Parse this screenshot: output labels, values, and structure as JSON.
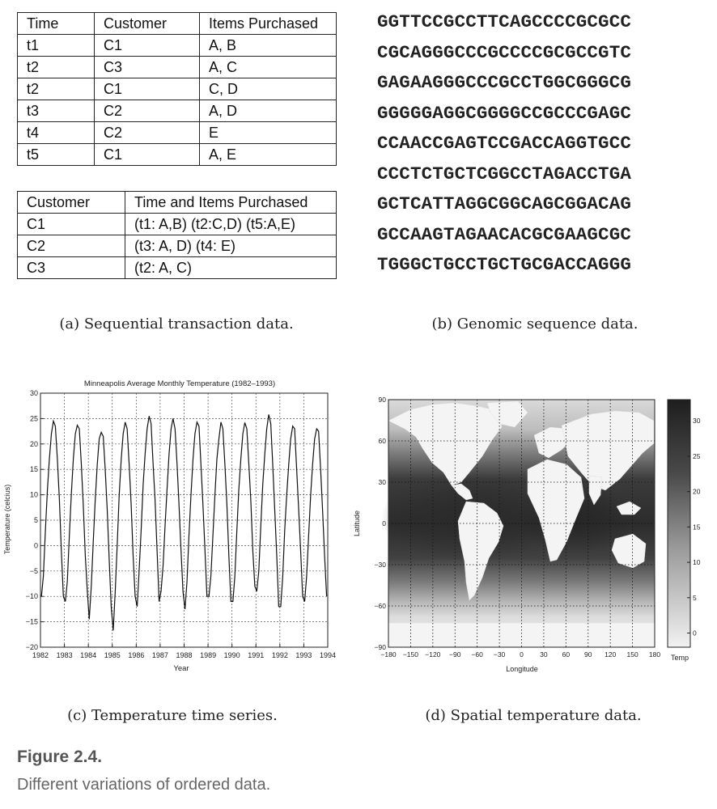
{
  "transactions": {
    "headers": [
      "Time",
      "Customer",
      "Items Purchased"
    ],
    "rows": [
      [
        "t1",
        "C1",
        "A, B"
      ],
      [
        "t2",
        "C3",
        "A, C"
      ],
      [
        "t2",
        "C1",
        "C, D"
      ],
      [
        "t3",
        "C2",
        "A, D"
      ],
      [
        "t4",
        "C2",
        "E"
      ],
      [
        "t5",
        "C1",
        "A, E"
      ]
    ]
  },
  "customers": {
    "headers": [
      "Customer",
      "Time and Items Purchased"
    ],
    "rows": [
      [
        "C1",
        "(t1: A,B)  (t2:C,D)  (t5:A,E)"
      ],
      [
        "C2",
        "(t3: A, D) (t4: E)"
      ],
      [
        "C3",
        "(t2: A, C)"
      ]
    ]
  },
  "genome": {
    "lines": [
      "GGTTCCGCCTTCAGCCCCGCGCC",
      "CGCAGGGCCCGCCCCGCGCCGTC",
      "GAGAAGGGCCCGCCTGGCGGGCG",
      "GGGGGAGGCGGGGCCGCCCGAGC",
      "CCAACCGAGTCCGACCAGGTGCC",
      "CCCTCTGCTCGGCCTAGACCTGA",
      "GCTCATTAGGCGGCAGCGGACAG",
      "GCCAAGTAGAACACGCGAAGCGC",
      "TGGGCTGCCTGCTGCGACCAGGG"
    ]
  },
  "captions": {
    "a": "(a) Sequential transaction data.",
    "b": "(b) Genomic sequence data.",
    "c": "(c) Temperature time series.",
    "d": "(d) Spatial temperature data."
  },
  "figure": {
    "label": "Figure 2.4.",
    "description": "Different variations of ordered data."
  },
  "chart_data": [
    {
      "type": "line",
      "title": "Minneapolis Average Monthly Temperature (1982–1993)",
      "xlabel": "Year",
      "ylabel": "Temperature (celcius)",
      "x_ticks": [
        "1982",
        "1983",
        "1984",
        "1985",
        "1986",
        "1987",
        "1988",
        "1989",
        "1990",
        "1991",
        "1992",
        "1993",
        "1994"
      ],
      "y_ticks": [
        -20,
        -15,
        -10,
        -5,
        0,
        5,
        10,
        15,
        20,
        25,
        30
      ],
      "xlim": [
        1982,
        1994
      ],
      "ylim": [
        -20,
        30
      ],
      "grid": true,
      "series": [
        {
          "x_start": 1982.04,
          "x_step": 0.0833,
          "values": [
            -10,
            -6,
            3,
            11,
            17,
            22,
            24.5,
            23.5,
            17,
            9,
            -1,
            -10,
            -11,
            -7,
            2,
            10,
            17,
            22,
            23.7,
            23,
            16,
            8,
            -2,
            -9,
            -14.5,
            -8,
            1,
            9,
            16,
            21,
            22.3,
            21.5,
            15,
            7,
            -3,
            -12,
            -16.7,
            -9,
            0,
            10,
            17,
            22,
            24.3,
            23,
            16,
            8,
            -2,
            -10,
            -12,
            -5,
            3,
            12,
            18,
            23,
            25.5,
            24,
            16,
            9,
            -1,
            -11,
            -9,
            -4,
            4,
            11,
            18,
            23,
            25,
            23,
            16,
            8,
            -1,
            -9,
            -12.5,
            -7,
            2,
            10,
            17,
            22,
            24.3,
            23.5,
            16,
            8,
            -1,
            -10,
            -10,
            -6,
            2,
            10,
            17,
            21,
            24.3,
            23,
            16,
            8,
            -2,
            -11,
            -11,
            -6,
            3,
            11,
            17,
            22,
            24.2,
            23,
            16,
            9,
            -1,
            -8,
            -9,
            -5,
            4,
            12,
            18,
            23,
            25.8,
            24,
            16,
            7,
            -2,
            -12,
            -12,
            -6,
            3,
            10,
            16,
            21,
            23.5,
            23,
            15,
            7,
            -1,
            -10,
            -11,
            -6,
            2,
            10,
            16,
            21,
            23,
            22.5,
            15,
            7,
            -2,
            -10
          ]
        }
      ]
    },
    {
      "type": "heatmap",
      "title": "",
      "xlabel": "Longitude",
      "ylabel": "Latitude",
      "x_ticks": [
        "−180",
        "−150",
        "−120",
        "−90",
        "−60",
        "−30",
        "0",
        "30",
        "60",
        "90",
        "120",
        "150",
        "180"
      ],
      "y_ticks": [
        "90",
        "60",
        "30",
        "0",
        "−30",
        "−60",
        "−90"
      ],
      "xlim": [
        -180,
        180
      ],
      "ylim": [
        -90,
        90
      ],
      "grid": true,
      "colorbar": {
        "label": "Temp",
        "ticks": [
          "0",
          "5",
          "10",
          "15",
          "20",
          "25",
          "30"
        ],
        "range": [
          -2,
          33
        ]
      }
    }
  ]
}
